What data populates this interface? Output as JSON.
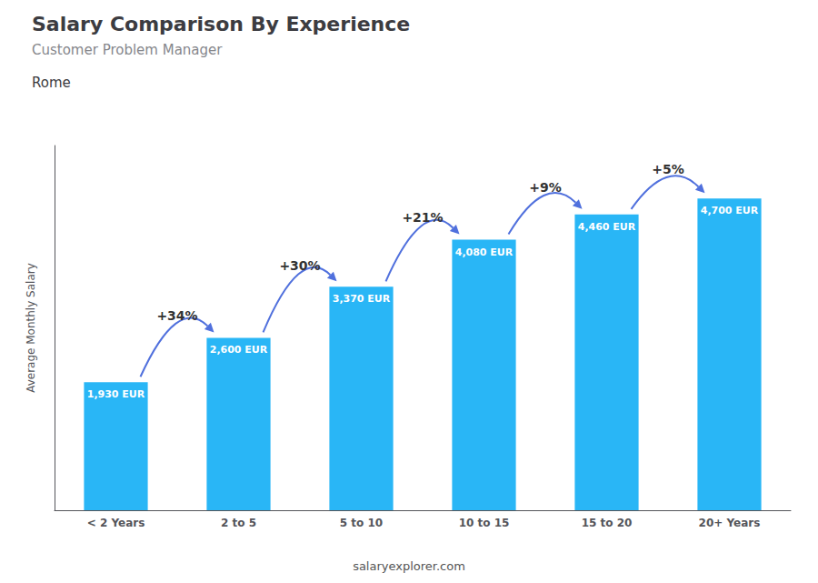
{
  "chart_data": {
    "type": "bar",
    "title": "Salary Comparison By Experience",
    "subtitle": "Customer Problem Manager",
    "annotations": [
      "Rome",
      "salaryexplorer.com"
    ],
    "ylabel": "Average Monthly Salary",
    "categories": [
      "< 2 Years",
      "2 to 5",
      "5 to 10",
      "10 to 15",
      "15 to 20",
      "20+ Years"
    ],
    "values": [
      1930,
      2600,
      3370,
      4080,
      4460,
      4700
    ],
    "value_labels": [
      "1,930 EUR",
      "2,600 EUR",
      "3,370 EUR",
      "4,080 EUR",
      "4,460 EUR",
      "4,700 EUR"
    ],
    "data_labels": true,
    "change_labels": [
      "+34%",
      "+30%",
      "+21%",
      "+9%",
      "+5%"
    ],
    "color": "#29b6f6",
    "ylim": [
      0,
      5500
    ],
    "grid": false,
    "tick_labels": "x"
  }
}
